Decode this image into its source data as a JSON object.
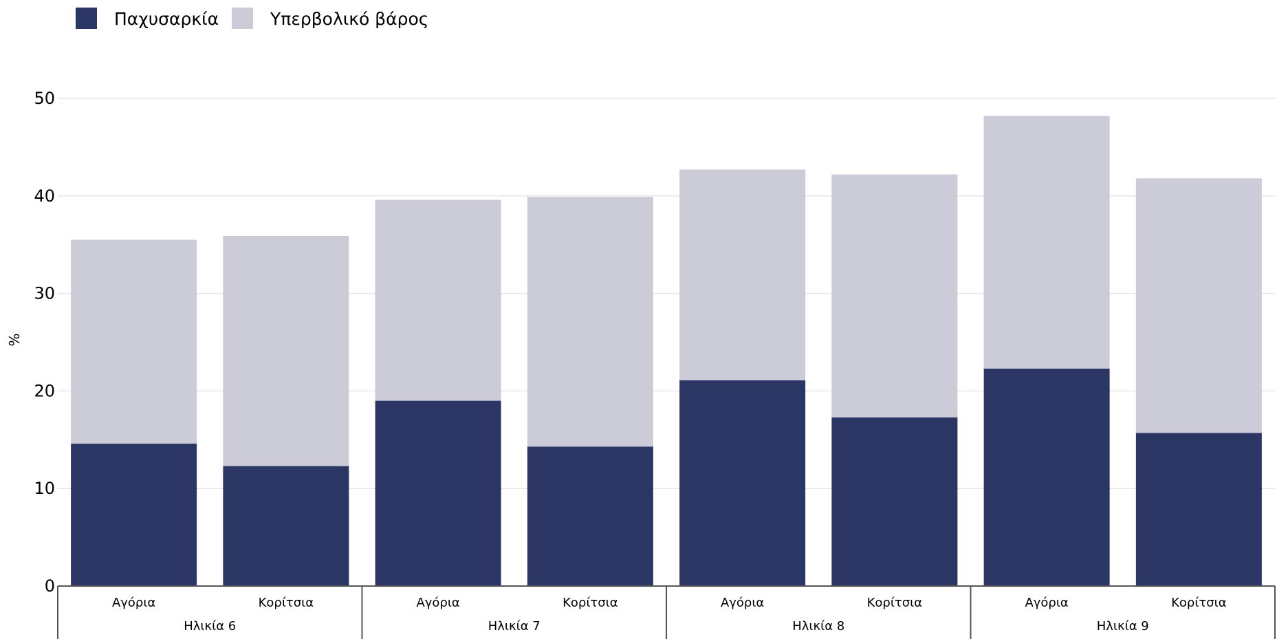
{
  "chart_data": {
    "type": "bar",
    "stacked": true,
    "ylabel": "%",
    "ylim": [
      0,
      50
    ],
    "yticks": [
      0,
      10,
      20,
      30,
      40,
      50
    ],
    "grid": true,
    "legend_position": "top-left",
    "groups": [
      "Ηλικία 6",
      "Ηλικία 7",
      "Ηλικία 8",
      "Ηλικία 9"
    ],
    "categories": [
      "Αγόρια",
      "Κορίτσια",
      "Αγόρια",
      "Κορίτσια",
      "Αγόρια",
      "Κορίτσια",
      "Αγόρια",
      "Κορίτσια"
    ],
    "series": [
      {
        "name": "Παχυσαρκία",
        "color": "#2b3664",
        "values": [
          14.6,
          12.3,
          19.0,
          14.3,
          21.1,
          17.3,
          22.3,
          15.7
        ]
      },
      {
        "name": "Υπερβολικό βάρος",
        "color": "#cbccd8",
        "values": [
          20.9,
          23.6,
          20.6,
          25.6,
          21.6,
          24.9,
          25.9,
          26.1
        ]
      }
    ]
  }
}
